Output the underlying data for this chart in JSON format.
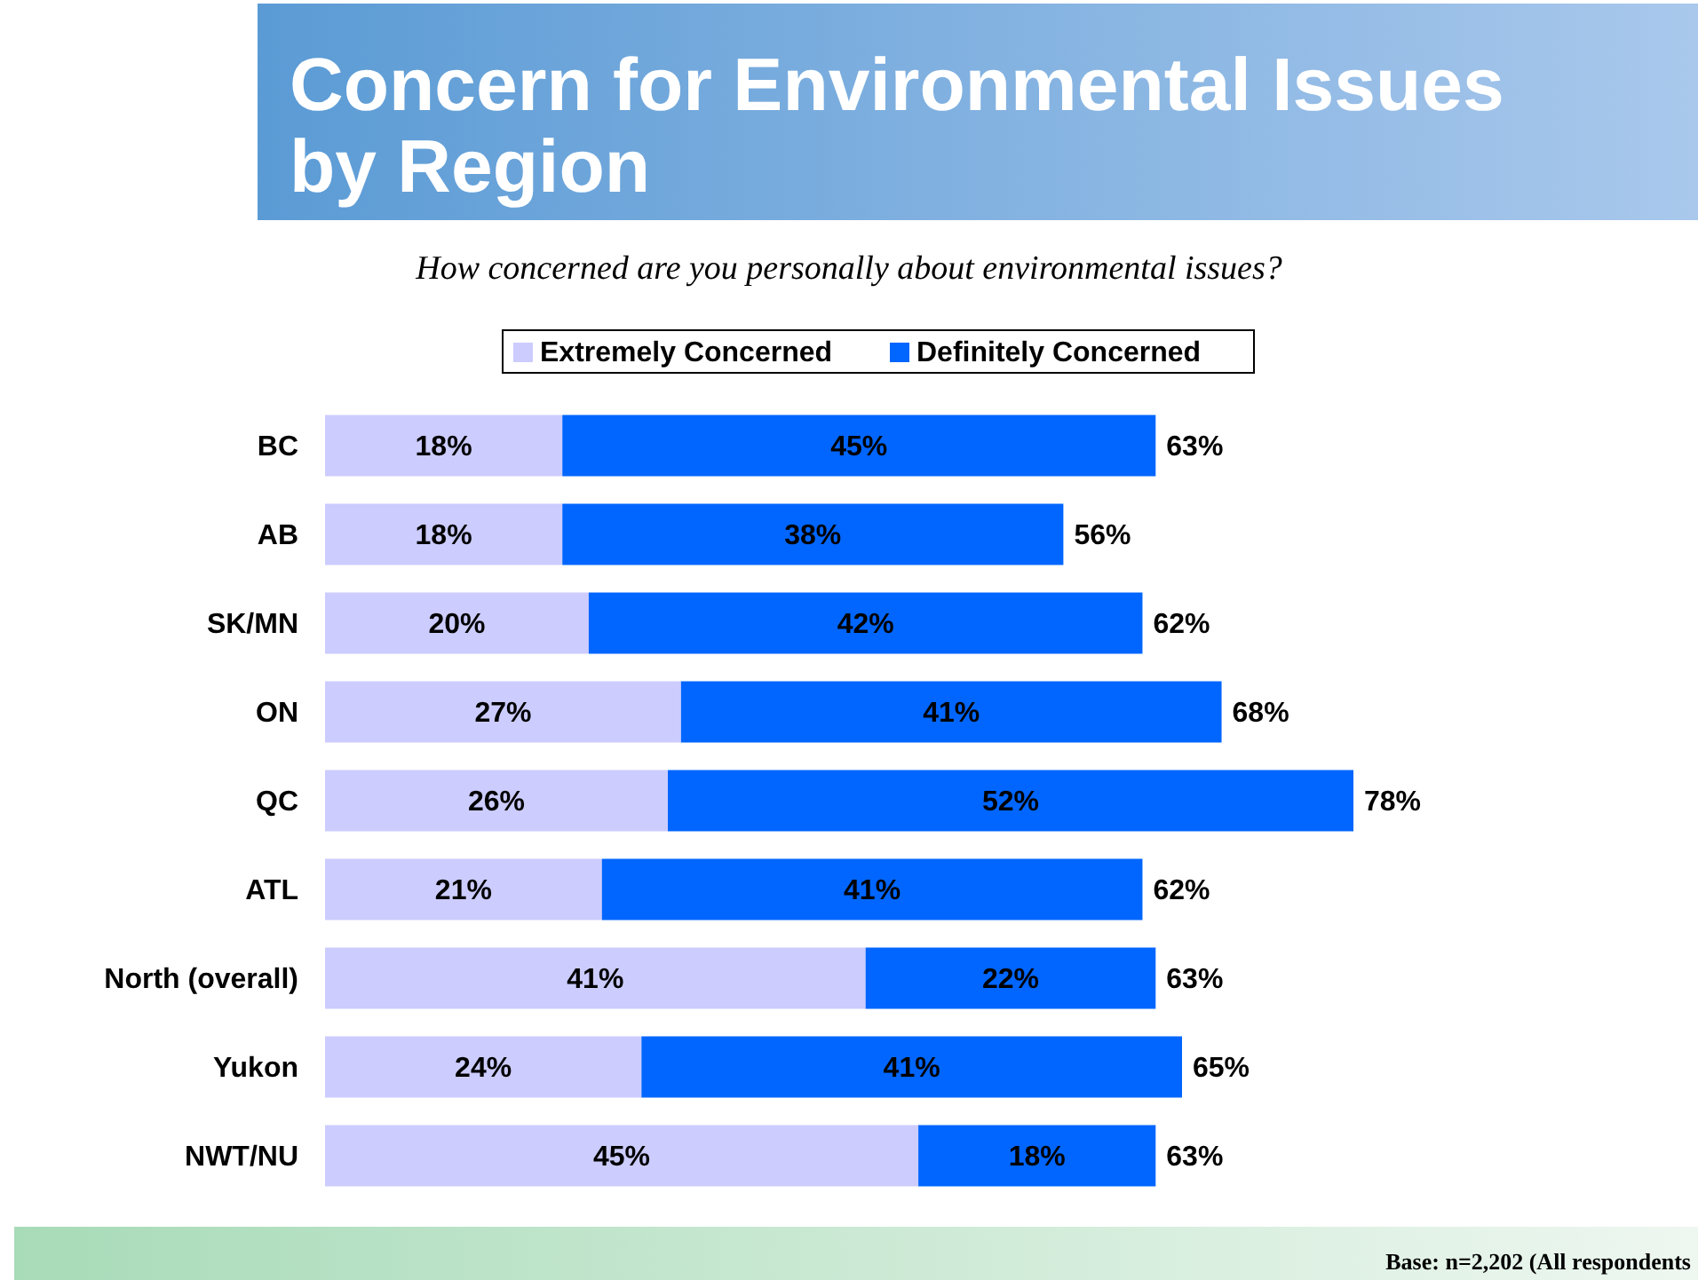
{
  "chart_data": {
    "type": "bar",
    "title": "Concern for Environmental Issues by Region",
    "subtitle": "How concerned are you personally about environmental issues?",
    "orientation": "horizontal",
    "stacked": true,
    "legend": "top",
    "categories": [
      "BC",
      "AB",
      "SK/MN",
      "ON",
      "QC",
      "ATL",
      "North (overall)",
      "Yukon",
      "NWT/NU"
    ],
    "series": [
      {
        "name": "Extremely Concerned",
        "color": "#ccccff",
        "values": [
          18,
          18,
          20,
          27,
          26,
          21,
          41,
          24,
          45
        ],
        "value_labels": [
          "18%",
          "18%",
          "20%",
          "27%",
          "26%",
          "21%",
          "41%",
          "24%",
          "45%"
        ]
      },
      {
        "name": "Definitely Concerned",
        "color": "#0066ff",
        "values": [
          45,
          38,
          42,
          41,
          52,
          41,
          22,
          41,
          18
        ],
        "value_labels": [
          "45%",
          "38%",
          "42%",
          "41%",
          "52%",
          "41%",
          "22%",
          "41%",
          "18%"
        ]
      }
    ],
    "totals": [
      "63%",
      "56%",
      "62%",
      "68%",
      "78%",
      "62%",
      "63%",
      "65%",
      "63%"
    ],
    "annotations": [
      "Base: n=2,202 (All respondents"
    ]
  }
}
